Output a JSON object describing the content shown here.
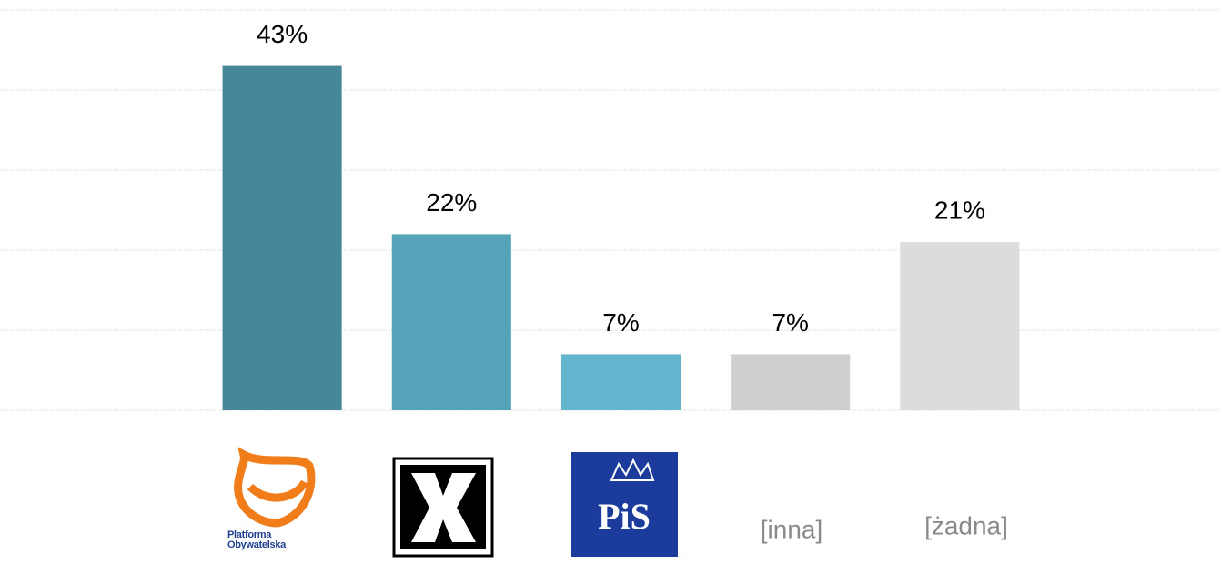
{
  "chart_data": {
    "type": "bar",
    "categories": [
      "Platforma Obywatelska",
      null,
      "PiS",
      "[inna]",
      "[żadna]"
    ],
    "values": [
      43,
      22,
      7,
      7,
      21
    ],
    "value_labels": [
      "43%",
      "22%",
      "7%",
      "7%",
      "21%"
    ],
    "colors": [
      "#46889a",
      "#55a3b8",
      "#62b5cc",
      "#cfcfcf",
      "#dcdcdc"
    ],
    "ylim": [
      0,
      50
    ],
    "yticks": [
      0,
      10,
      20,
      30,
      40,
      50
    ],
    "grid": true
  }
}
